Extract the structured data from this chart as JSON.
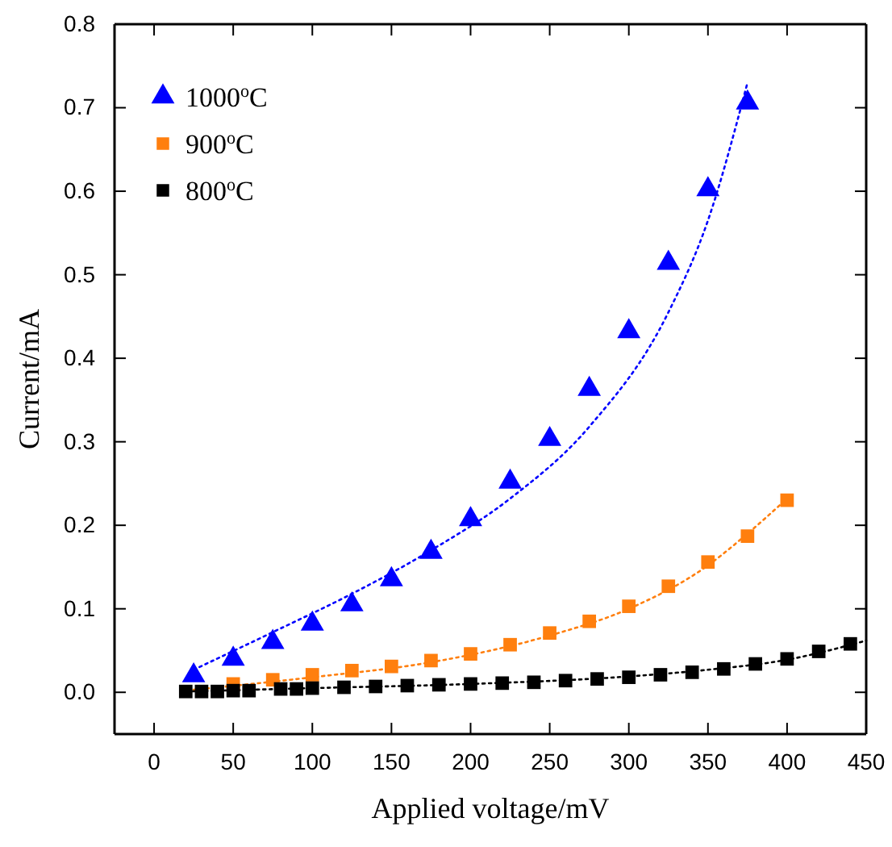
{
  "chart_data": {
    "type": "scatter",
    "xlabel": "Applied voltage/mV",
    "ylabel": "Current/mA",
    "xlim": [
      -25,
      450
    ],
    "xticks": [
      0,
      50,
      100,
      150,
      200,
      250,
      300,
      350,
      400,
      450
    ],
    "ylim": [
      -0.05,
      0.8
    ],
    "yticks": [
      {
        "value": 0,
        "label": "0.0"
      },
      0.1,
      0.2,
      0.3,
      0.4,
      0.5,
      0.6,
      0.7,
      0.8
    ],
    "legend": "top left",
    "grid": false,
    "series": [
      {
        "name": "1000$^{o}$C",
        "color": "#0000ff",
        "marker": "triangle",
        "x": [
          25,
          50,
          75,
          100,
          125,
          150,
          175,
          200,
          225,
          250,
          275,
          300,
          325,
          350,
          375
        ],
        "values": [
          0.02,
          0.04,
          0.06,
          0.082,
          0.105,
          0.135,
          0.168,
          0.207,
          0.252,
          0.303,
          0.363,
          0.432,
          0.514,
          0.602,
          0.706
        ]
      },
      {
        "name": "900$^{o}$C",
        "color": "#ff7f0e",
        "marker": "square",
        "x": [
          50,
          75,
          100,
          125,
          150,
          175,
          200,
          225,
          250,
          275,
          300,
          325,
          350,
          375,
          400
        ],
        "values": [
          0.01,
          0.015,
          0.021,
          0.026,
          0.031,
          0.038,
          0.046,
          0.057,
          0.071,
          0.085,
          0.103,
          0.127,
          0.156,
          0.187,
          0.23
        ]
      },
      {
        "name": "800$^{o}$C",
        "color": "#000000",
        "marker": "square",
        "x": [
          20,
          30,
          40,
          50,
          60,
          80,
          90,
          100,
          120,
          140,
          160,
          180,
          200,
          220,
          240,
          260,
          280,
          300,
          320,
          340,
          360,
          380,
          400,
          420,
          440
        ],
        "values": [
          0.001,
          0.001,
          0.001,
          0.002,
          0.002,
          0.004,
          0.004,
          0.005,
          0.006,
          0.007,
          0.008,
          0.009,
          0.01,
          0.011,
          0.012,
          0.014,
          0.016,
          0.018,
          0.021,
          0.024,
          0.028,
          0.034,
          0.04,
          0.049,
          0.058
        ]
      },
      {
        "type": "line",
        "color": "#0000ff",
        "line_style": "dotted",
        "marker": "none",
        "x": [
          25,
          75,
          125,
          175,
          225,
          275,
          325,
          350,
          375
        ],
        "values": [
          0.027,
          0.072,
          0.118,
          0.17,
          0.232,
          0.318,
          0.455,
          0.565,
          0.73
        ]
      },
      {
        "type": "line",
        "color": "#ff7f0e",
        "line_style": "dotted",
        "marker": "none",
        "x": [
          25,
          100,
          175,
          250,
          300,
          350,
          375,
          400
        ],
        "values": [
          0.003,
          0.018,
          0.036,
          0.068,
          0.1,
          0.152,
          0.19,
          0.232
        ]
      },
      {
        "type": "line",
        "color": "#000000",
        "line_style": "dotted",
        "marker": "none",
        "x": [
          20,
          100,
          200,
          300,
          350,
          400,
          450
        ],
        "values": [
          0.001,
          0.005,
          0.01,
          0.019,
          0.027,
          0.039,
          0.062
        ]
      }
    ]
  }
}
